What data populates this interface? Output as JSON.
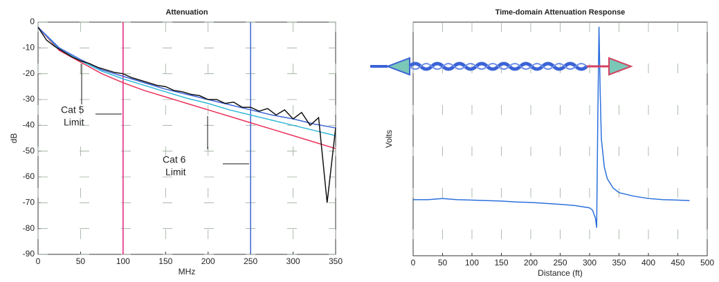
{
  "chart_data": [
    {
      "type": "line",
      "title": "Attenuation",
      "xlabel": "MHz",
      "ylabel": "dB",
      "xlim": [
        0,
        350
      ],
      "ylim": [
        -90,
        0
      ],
      "xticks": [
        0,
        50,
        100,
        150,
        200,
        250,
        300,
        350
      ],
      "yticks": [
        0,
        -10,
        -20,
        -30,
        -40,
        -50,
        -60,
        -70,
        -80,
        -90
      ],
      "grid": true,
      "vlines": [
        {
          "x": 100,
          "color": "#e0207a"
        },
        {
          "x": 250,
          "color": "#3b63d6"
        }
      ],
      "annotations": [
        {
          "text": [
            "Cat 5",
            "Limit"
          ],
          "color": "#e0207a"
        },
        {
          "text": [
            "Cat 6",
            "Limit"
          ],
          "color": "#3b63d6"
        }
      ],
      "series": [
        {
          "color": "#e8305a",
          "x": [
            0,
            25,
            50,
            75,
            100,
            125,
            150,
            175,
            200,
            225,
            250,
            275,
            300,
            325,
            350
          ],
          "values": [
            -2,
            -11,
            -15.5,
            -20,
            -23.5,
            -26.5,
            -29,
            -31.5,
            -34,
            -36.5,
            -39,
            -41.5,
            -44,
            -46.5,
            -49
          ]
        },
        {
          "color": "#30b8d8",
          "x": [
            0,
            25,
            50,
            75,
            100,
            125,
            150,
            175,
            200,
            225,
            250,
            275,
            300,
            325,
            350
          ],
          "values": [
            -2,
            -10.5,
            -15,
            -19,
            -22,
            -24.5,
            -27,
            -29.5,
            -31.5,
            -34,
            -36,
            -38,
            -40,
            -42,
            -44
          ]
        },
        {
          "color": "#3b63d6",
          "x": [
            0,
            25,
            50,
            75,
            100,
            125,
            150,
            175,
            200,
            225,
            250,
            275,
            300,
            325,
            350
          ],
          "values": [
            -2,
            -10,
            -14.5,
            -18.5,
            -21,
            -23.5,
            -26,
            -28,
            -30,
            -32,
            -34,
            -36,
            -37.5,
            -39.5,
            -41
          ]
        },
        {
          "color": "#111111",
          "x": [
            0,
            10,
            20,
            30,
            40,
            50,
            60,
            70,
            80,
            90,
            100,
            110,
            120,
            130,
            140,
            150,
            160,
            170,
            180,
            190,
            200,
            210,
            220,
            230,
            240,
            250,
            260,
            270,
            280,
            290,
            300,
            310,
            320,
            330,
            340,
            350
          ],
          "values": [
            -2,
            -7,
            -9.5,
            -11.5,
            -13.5,
            -15,
            -16,
            -17.5,
            -18.5,
            -19.5,
            -20,
            -21.5,
            -22.5,
            -23.5,
            -24.5,
            -25,
            -26.5,
            -27,
            -28,
            -28.5,
            -30,
            -30,
            -31.5,
            -31,
            -33,
            -33,
            -34.5,
            -33.5,
            -36,
            -34,
            -37.5,
            -35,
            -40,
            -37,
            -70,
            -41
          ]
        }
      ]
    },
    {
      "type": "line",
      "title": "Time-domain Attenuation Response",
      "xlabel": "Distance (ft)",
      "ylabel": "Volts",
      "xlim": [
        0,
        500
      ],
      "ylim": [
        0,
        1
      ],
      "xticks": [
        0,
        50,
        100,
        150,
        200,
        250,
        300,
        350,
        400,
        450,
        500
      ],
      "grid": true,
      "series": [
        {
          "color": "#2a6fdc",
          "x": [
            0,
            25,
            50,
            75,
            100,
            125,
            150,
            175,
            200,
            225,
            250,
            275,
            300,
            305,
            310,
            312,
            314,
            316,
            318,
            320,
            325,
            330,
            340,
            350,
            375,
            400,
            425,
            450,
            470
          ],
          "values": [
            0.24,
            0.24,
            0.245,
            0.24,
            0.238,
            0.236,
            0.234,
            0.23,
            0.228,
            0.224,
            0.22,
            0.215,
            0.205,
            0.195,
            0.16,
            0.12,
            0.6,
            0.98,
            0.7,
            0.5,
            0.38,
            0.33,
            0.29,
            0.27,
            0.255,
            0.245,
            0.24,
            0.238,
            0.236
          ]
        }
      ]
    }
  ]
}
